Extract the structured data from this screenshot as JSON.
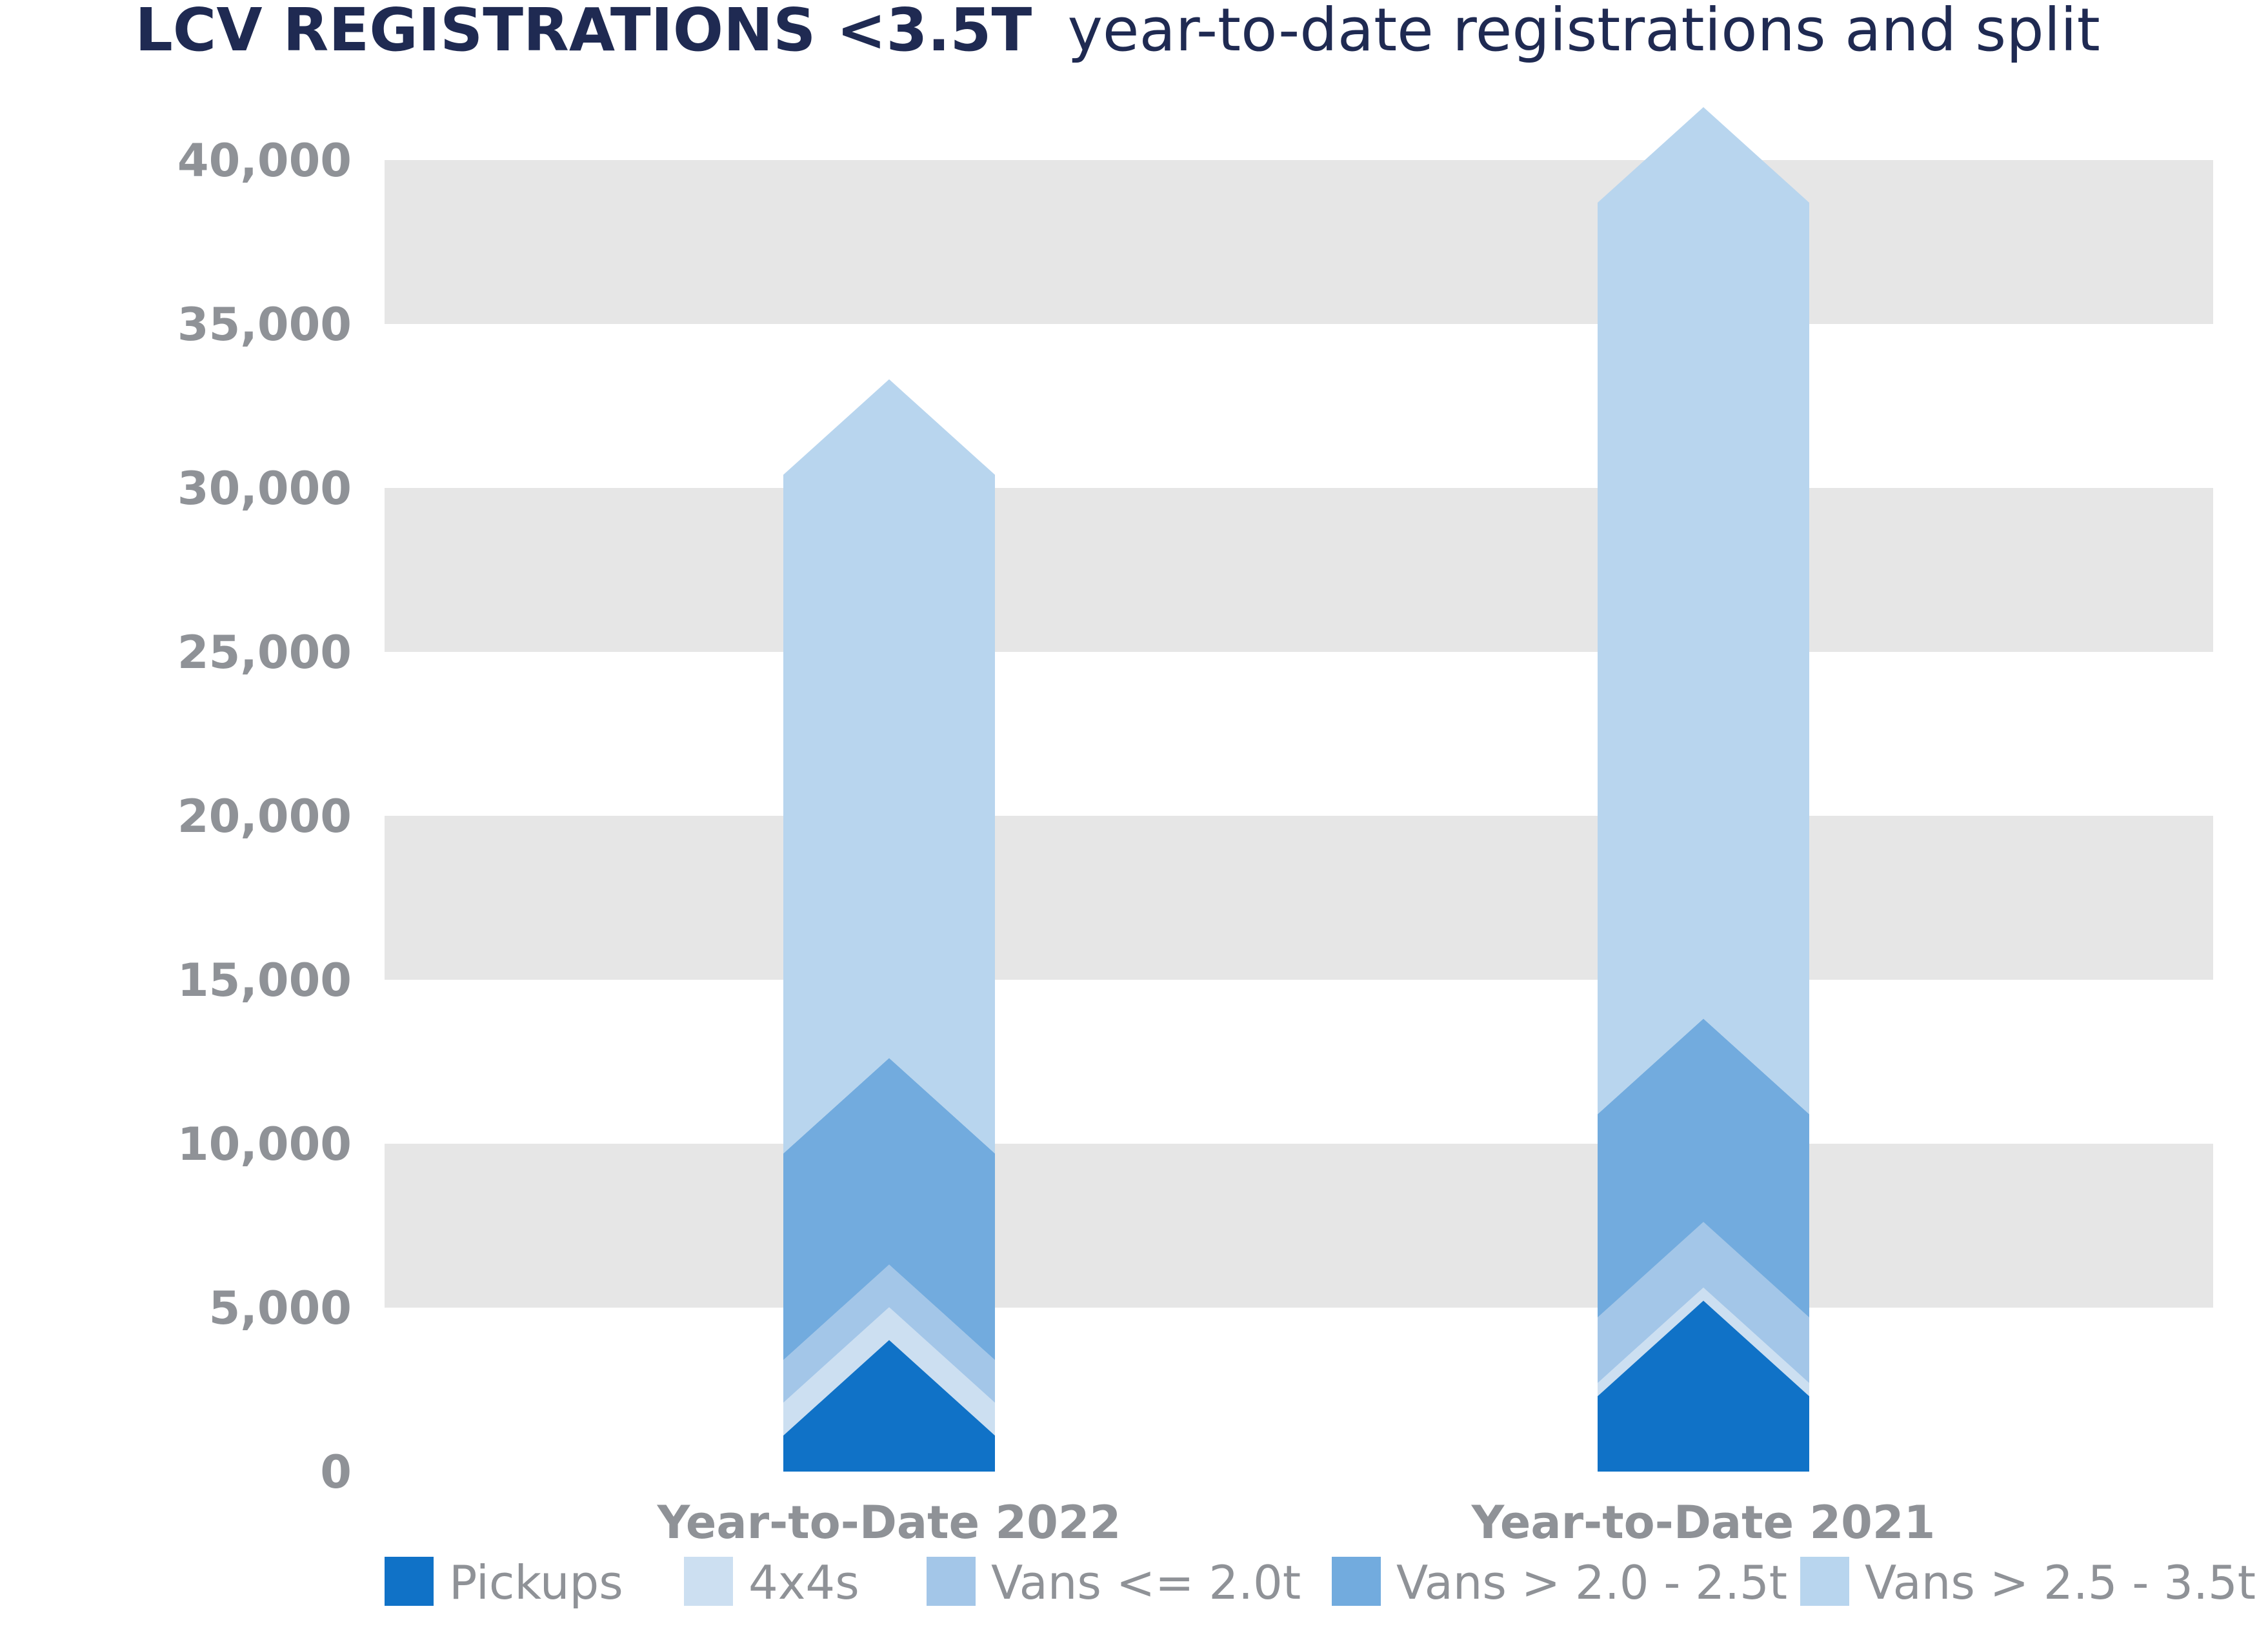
{
  "title": {
    "bold": "LCV REGISTRATIONS <3.5T",
    "normal": "year-to-date registrations and split"
  },
  "chart_data": {
    "type": "bar",
    "stacked": true,
    "categories": [
      "Year-to-Date 2022",
      "Year-to-Date 2021"
    ],
    "series": [
      {
        "name": "Pickups",
        "values": [
          1100,
          2300
        ],
        "color": "#1072c7"
      },
      {
        "name": "4x4s",
        "values": [
          1000,
          400
        ],
        "color": "#ccdff1"
      },
      {
        "name": "Vans <= 2.0t",
        "values": [
          1300,
          2000
        ],
        "color": "#a3c6e8"
      },
      {
        "name": "Vans > 2.0 - 2.5t",
        "values": [
          6300,
          6200
        ],
        "color": "#72abde"
      },
      {
        "name": "Vans > 2.5 - 3.5t",
        "values": [
          20700,
          27800
        ],
        "color": "#b8d5ee"
      }
    ],
    "ylim": [
      0,
      40000
    ],
    "yticks": [
      "0",
      "5,000",
      "10,000",
      "15,000",
      "20,000",
      "25,000",
      "30,000",
      "35,000",
      "40,000"
    ],
    "ytick_values": [
      0,
      5000,
      10000,
      15000,
      20000,
      25000,
      30000,
      35000,
      40000
    ],
    "bands": [
      [
        5000,
        10000
      ],
      [
        15000,
        20000
      ],
      [
        25000,
        30000
      ],
      [
        35000,
        40000
      ]
    ],
    "band_color": "#e6e6e6",
    "legend_position": "bottom",
    "xlabel": "",
    "ylabel": ""
  }
}
